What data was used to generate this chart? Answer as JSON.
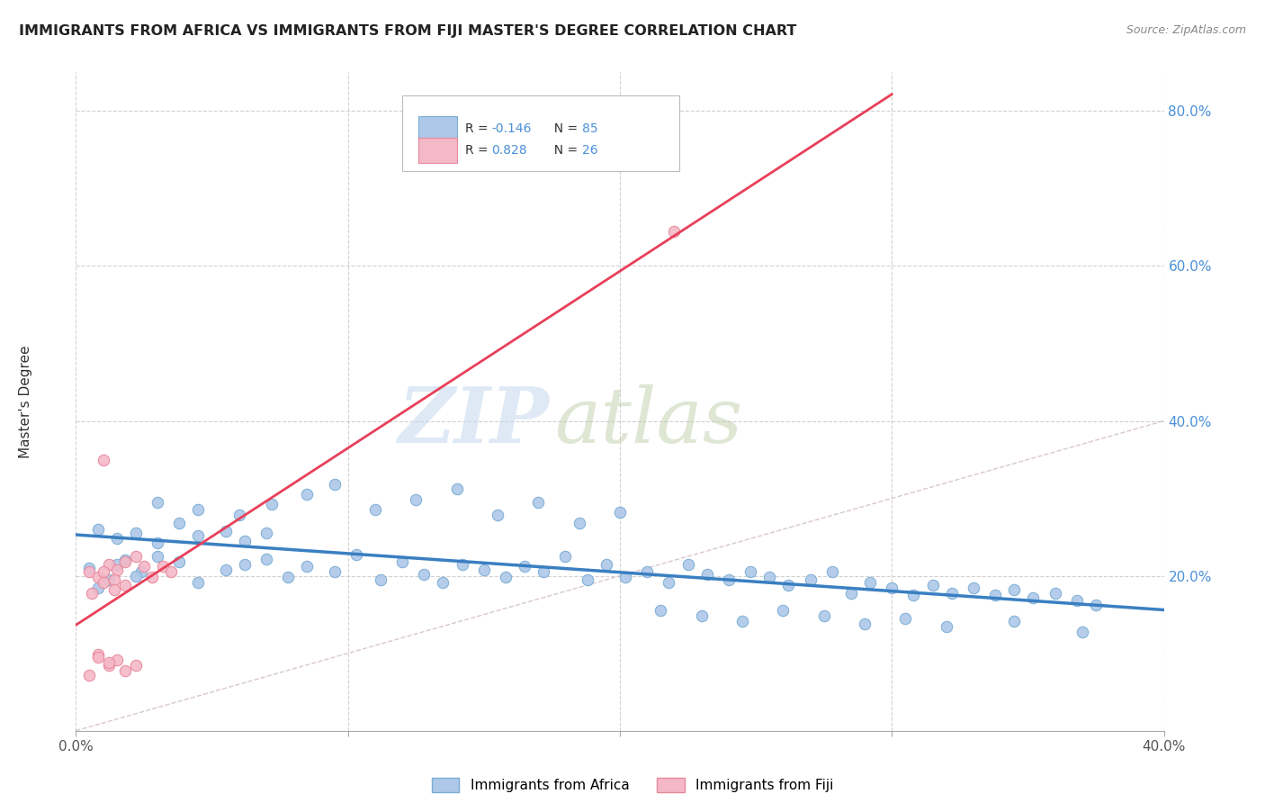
{
  "title": "IMMIGRANTS FROM AFRICA VS IMMIGRANTS FROM FIJI MASTER'S DEGREE CORRELATION CHART",
  "source": "Source: ZipAtlas.com",
  "ylabel": "Master's Degree",
  "xlim": [
    0.0,
    0.4
  ],
  "ylim": [
    0.0,
    0.85
  ],
  "yticks": [
    0.2,
    0.4,
    0.6,
    0.8
  ],
  "ytick_labels": [
    "20.0%",
    "40.0%",
    "60.0%",
    "80.0%"
  ],
  "xticks": [
    0.0,
    0.1,
    0.2,
    0.3,
    0.4
  ],
  "africa_color": "#adc8e8",
  "africa_edge": "#7aadd4",
  "fiji_color": "#f4b8c8",
  "fiji_edge": "#e8889a",
  "africa_line_color": "#3a7fc1",
  "fiji_line_color": "#e8405a",
  "diagonal_color": "#c8b0b8",
  "R_africa": -0.146,
  "N_africa": 85,
  "R_fiji": 0.828,
  "N_fiji": 26,
  "watermark_zip": "ZIP",
  "watermark_atlas": "atlas",
  "legend_label_africa": "Immigrants from Africa",
  "legend_label_fiji": "Immigrants from Fiji",
  "africa_x": [
    0.005,
    0.012,
    0.018,
    0.024,
    0.008,
    0.015,
    0.022,
    0.03,
    0.038,
    0.045,
    0.055,
    0.062,
    0.07,
    0.078,
    0.085,
    0.095,
    0.103,
    0.112,
    0.12,
    0.128,
    0.135,
    0.142,
    0.15,
    0.158,
    0.165,
    0.172,
    0.18,
    0.188,
    0.195,
    0.202,
    0.21,
    0.218,
    0.225,
    0.232,
    0.24,
    0.248,
    0.255,
    0.262,
    0.27,
    0.278,
    0.285,
    0.292,
    0.3,
    0.308,
    0.315,
    0.322,
    0.33,
    0.338,
    0.345,
    0.352,
    0.36,
    0.368,
    0.375,
    0.008,
    0.015,
    0.022,
    0.03,
    0.038,
    0.045,
    0.055,
    0.062,
    0.07,
    0.03,
    0.045,
    0.06,
    0.072,
    0.085,
    0.095,
    0.11,
    0.125,
    0.14,
    0.155,
    0.17,
    0.185,
    0.2,
    0.215,
    0.23,
    0.245,
    0.26,
    0.275,
    0.29,
    0.305,
    0.32,
    0.345,
    0.37
  ],
  "africa_y": [
    0.21,
    0.195,
    0.22,
    0.205,
    0.185,
    0.215,
    0.2,
    0.225,
    0.218,
    0.192,
    0.208,
    0.215,
    0.222,
    0.198,
    0.212,
    0.205,
    0.228,
    0.195,
    0.218,
    0.202,
    0.192,
    0.215,
    0.208,
    0.198,
    0.212,
    0.205,
    0.225,
    0.195,
    0.215,
    0.198,
    0.205,
    0.192,
    0.215,
    0.202,
    0.195,
    0.205,
    0.198,
    0.188,
    0.195,
    0.205,
    0.178,
    0.192,
    0.185,
    0.175,
    0.188,
    0.178,
    0.185,
    0.175,
    0.182,
    0.172,
    0.178,
    0.168,
    0.162,
    0.26,
    0.248,
    0.255,
    0.242,
    0.268,
    0.252,
    0.258,
    0.245,
    0.255,
    0.295,
    0.285,
    0.278,
    0.292,
    0.305,
    0.318,
    0.285,
    0.298,
    0.312,
    0.278,
    0.295,
    0.268,
    0.282,
    0.155,
    0.148,
    0.142,
    0.155,
    0.148,
    0.138,
    0.145,
    0.135,
    0.142,
    0.128
  ],
  "fiji_x": [
    0.005,
    0.008,
    0.012,
    0.015,
    0.018,
    0.022,
    0.025,
    0.028,
    0.032,
    0.035,
    0.008,
    0.012,
    0.015,
    0.018,
    0.022,
    0.01,
    0.014,
    0.018,
    0.006,
    0.01,
    0.014,
    0.008,
    0.012,
    0.01,
    0.22,
    0.005
  ],
  "fiji_y": [
    0.205,
    0.198,
    0.215,
    0.208,
    0.218,
    0.225,
    0.212,
    0.198,
    0.212,
    0.205,
    0.098,
    0.085,
    0.092,
    0.078,
    0.085,
    0.205,
    0.195,
    0.188,
    0.178,
    0.192,
    0.182,
    0.095,
    0.088,
    0.35,
    0.645,
    0.072
  ]
}
